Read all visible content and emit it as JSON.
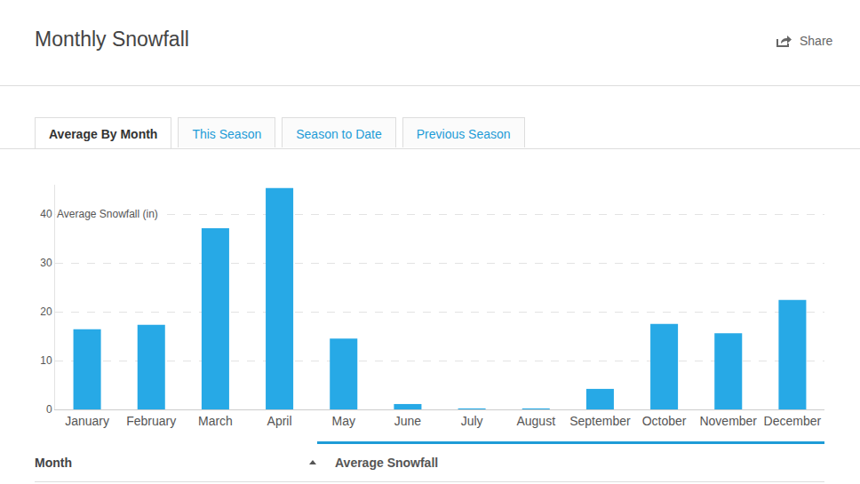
{
  "header": {
    "title": "Monthly Snowfall",
    "share": "Share"
  },
  "tabs": [
    "Average By Month",
    "This Season",
    "Season to Date",
    "Previous Season"
  ],
  "chart_data": {
    "type": "bar",
    "ylabel": "Average Snowfall (in)",
    "categories": [
      "January",
      "February",
      "March",
      "April",
      "May",
      "June",
      "July",
      "August",
      "September",
      "October",
      "November",
      "December"
    ],
    "values": [
      16.4,
      17.3,
      37.1,
      45.3,
      14.5,
      1.1,
      0.2,
      0.2,
      4.2,
      17.5,
      15.6,
      22.4
    ],
    "color": "#27a9e6",
    "ylim": [
      0,
      46
    ],
    "yticks": [
      0,
      10,
      20,
      30,
      40
    ],
    "grid": true
  },
  "table": {
    "columns": [
      "Month",
      "Average Snowfall"
    ]
  }
}
